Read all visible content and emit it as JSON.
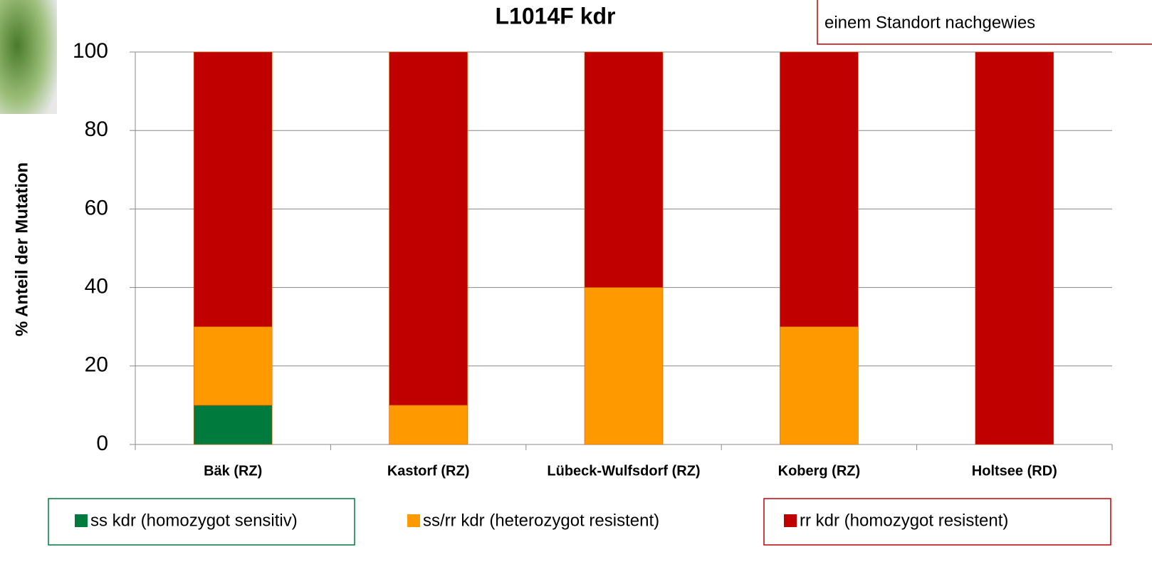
{
  "chart_data": {
    "type": "stacked_bar",
    "title": "L1014F kdr",
    "y_label": "% Anteil der Mutation",
    "annotation": "einem Standort nachgewies",
    "categories": [
      "Bäk (RZ)",
      "Kastorf (RZ)",
      "Lübeck-Wulfsdorf (RZ)",
      "Koberg (RZ)",
      "Holtsee (RD)"
    ],
    "series": [
      {
        "name": "ss kdr (homozygot sensitiv)",
        "color": "#007a3d",
        "values": [
          10,
          0,
          0,
          0,
          0
        ]
      },
      {
        "name": "ss/rr kdr (heterozygot resistent)",
        "color": "#ff9900",
        "values": [
          20,
          10,
          40,
          30,
          0
        ]
      },
      {
        "name": "rr kdr (homozygot resistent)",
        "color": "#c00000",
        "values": [
          70,
          90,
          60,
          70,
          100
        ]
      }
    ],
    "ylim": [
      0,
      100
    ],
    "yticks": [
      0,
      20,
      40,
      60,
      80,
      100
    ],
    "grid": true
  }
}
